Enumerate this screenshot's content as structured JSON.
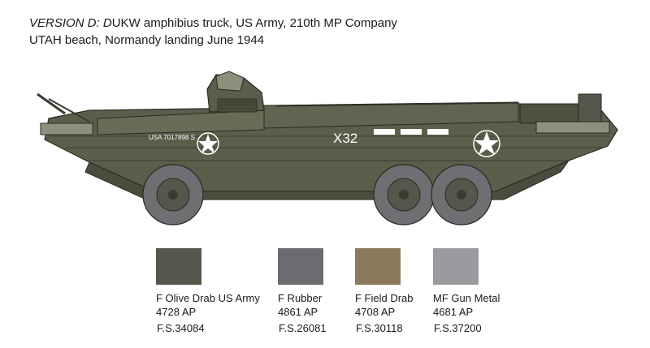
{
  "title": {
    "lead": "VERSION D: D",
    "rest": "UKW amphibius truck, US Army, 210th MP Company",
    "line2": "UTAH beach, Normandy landing June 1944"
  },
  "vehicle": {
    "serial_text": "USA  7017898  S",
    "unit_marking": "X32",
    "body_color": "#5c5d4b",
    "tire_color": "#6e6f72",
    "star_color": "#ffffff"
  },
  "swatches": [
    {
      "name": "F Olive Drab US Army",
      "code": "4728 AP",
      "fs": "F.S.34084",
      "color": "#55574a"
    },
    {
      "name": "F Rubber",
      "code": "4861 AP",
      "fs": "F.S.26081",
      "color": "#6b6c70"
    },
    {
      "name": "F Field Drab",
      "code": "4708 AP",
      "fs": "F.S.30118",
      "color": "#8b7a5c"
    },
    {
      "name": "MF Gun Metal",
      "code": "4681 AP",
      "fs": "F.S.37200",
      "color": "#9a9b9e"
    }
  ]
}
